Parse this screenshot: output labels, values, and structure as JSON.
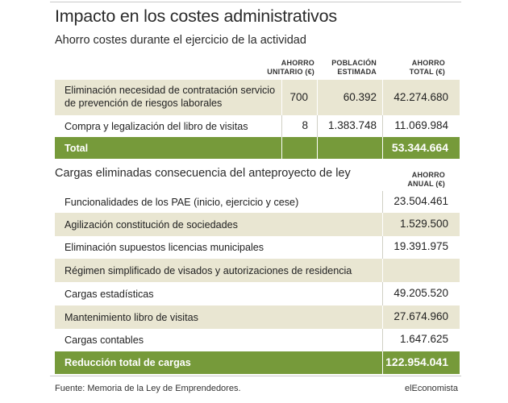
{
  "title": "Impacto en los costes administrativos",
  "section1": {
    "subtitle": "Ahorro costes durante el ejercicio de la actividad",
    "headers": {
      "col1": [
        "AHORRO",
        "UNITARIO (€)"
      ],
      "col2": [
        "POBLACIÓN",
        "ESTIMADA"
      ],
      "col3": [
        "AHORRO",
        "TOTAL (€)"
      ]
    },
    "rows": [
      {
        "label": [
          "Eliminación necesidad de contratación servicio",
          "de prevención de riesgos laborales"
        ],
        "unit": "700",
        "pop": "60.392",
        "total": "42.274.680"
      },
      {
        "label": [
          "Compra y legalización del libro de visitas"
        ],
        "unit": "8",
        "pop": "1.383.748",
        "total": "11.069.984"
      }
    ],
    "total": {
      "label": "Total",
      "value": "53.344.664"
    }
  },
  "section2": {
    "subtitle": "Cargas eliminadas consecuencia del anteproyecto de ley",
    "header": [
      "AHORRO",
      "ANUAL (€)"
    ],
    "rows": [
      {
        "label": "Funcionalidades de los PAE (inicio, ejercicio y cese)",
        "value": "23.504.461"
      },
      {
        "label": "Agilización constitución de sociedades",
        "value": "1.529.500"
      },
      {
        "label": "Eliminación supuestos licencias municipales",
        "value": "19.391.975"
      },
      {
        "label": "Régimen simplificado de visados y autorizaciones de residencia",
        "value": ""
      },
      {
        "label": "Cargas estadísticas",
        "value": "49.205.520"
      },
      {
        "label": "Mantenimiento libro de visitas",
        "value": "27.674.960"
      },
      {
        "label": "Cargas contables",
        "value": "1.647.625"
      }
    ],
    "total": {
      "label": "Reducción total de cargas",
      "value": "122.954.041"
    }
  },
  "footer": {
    "source": "Fuente: Memoria de la Ley de Emprendedores.",
    "brand": "elEconomista"
  },
  "colors": {
    "shaded_row": "#e9e6d2",
    "total_row": "#769a3a"
  }
}
